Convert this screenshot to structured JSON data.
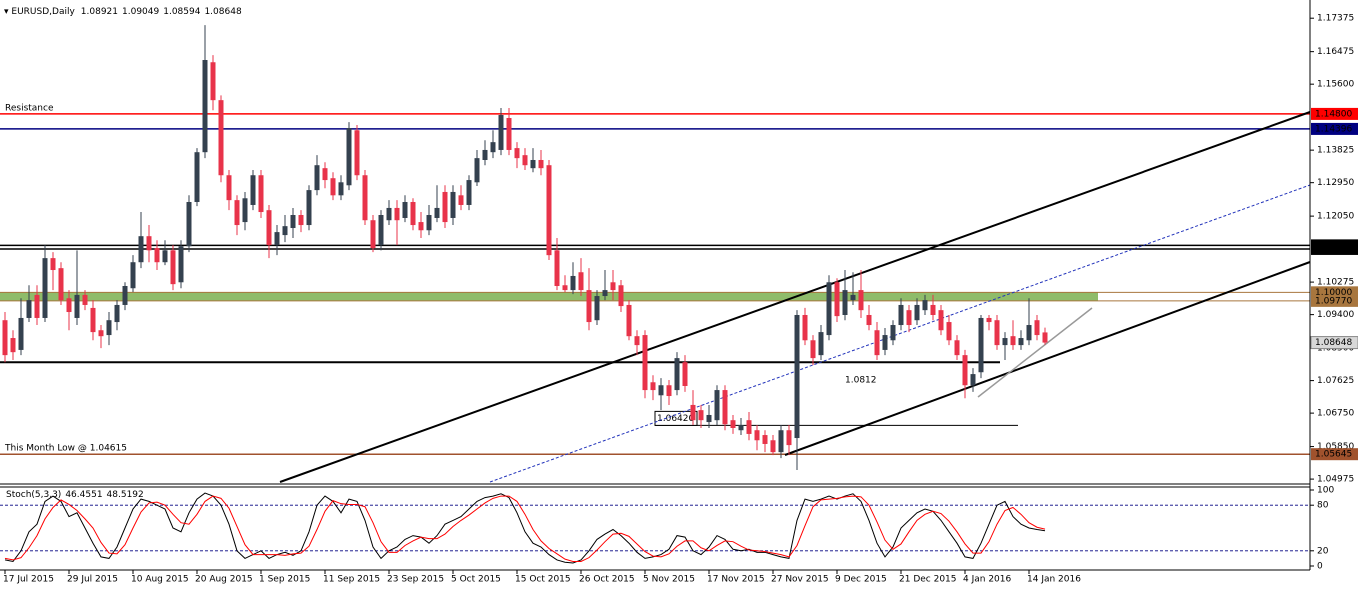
{
  "chart_data": {
    "type": "candlestick",
    "title": "EURUSD,Daily",
    "categories": [
      "17 Jul 2015",
      null,
      null,
      null,
      null,
      null,
      null,
      null,
      "29 Jul 2015",
      null,
      null,
      null,
      null,
      null,
      null,
      null,
      "10 Aug 2015",
      null,
      null,
      null,
      null,
      null,
      null,
      null,
      "20 Aug 2015",
      null,
      null,
      null,
      null,
      null,
      null,
      null,
      "1 Sep 2015",
      null,
      null,
      null,
      null,
      null,
      null,
      null,
      "11 Sep 2015",
      null,
      null,
      null,
      null,
      null,
      null,
      null,
      "23 Sep 2015",
      null,
      null,
      null,
      null,
      null,
      null,
      null,
      "5 Oct 2015",
      null,
      null,
      null,
      null,
      null,
      null,
      null,
      "15 Oct 2015",
      null,
      null,
      null,
      null,
      null,
      null,
      null,
      "26 Oct 2015",
      null,
      null,
      null,
      null,
      null,
      null,
      null,
      "5 Nov 2015",
      null,
      null,
      null,
      null,
      null,
      null,
      null,
      "17 Nov 2015",
      null,
      null,
      null,
      null,
      null,
      null,
      null,
      "27 Nov 2015",
      null,
      null,
      null,
      null,
      null,
      null,
      null,
      "9 Dec 2015",
      null,
      null,
      null,
      null,
      null,
      null,
      null,
      "21 Dec 2015",
      null,
      null,
      null,
      null,
      null,
      null,
      null,
      "4 Jan 2016",
      null,
      null,
      null,
      null,
      null,
      null,
      null,
      "14 Jan 2016",
      null,
      null
    ],
    "candles": [
      [
        1.0925,
        1.0947,
        1.0812,
        1.0831
      ],
      [
        1.0877,
        1.0898,
        1.0818,
        1.0839
      ],
      [
        1.0845,
        1.0984,
        1.0831,
        1.0931
      ],
      [
        1.0931,
        1.1019,
        1.092,
        1.0979
      ],
      [
        1.0993,
        1.1019,
        1.0912,
        1.0931
      ],
      [
        1.0931,
        1.1127,
        1.092,
        1.1092
      ],
      [
        1.1092,
        1.1108,
        1.1006,
        1.106
      ],
      [
        1.1065,
        1.1081,
        1.0966,
        1.0979
      ],
      [
        1.0984,
        1.1006,
        1.0898,
        1.0947
      ],
      [
        1.0931,
        1.1113,
        1.0912,
        1.0993
      ],
      [
        1.0993,
        1.1006,
        1.0952,
        1.0966
      ],
      [
        1.0958,
        1.0979,
        1.0871,
        1.0893
      ],
      [
        1.0898,
        1.0912,
        1.085,
        1.0882
      ],
      [
        1.0885,
        1.0947,
        1.0858,
        1.0925
      ],
      [
        1.092,
        1.0979,
        1.0898,
        1.0966
      ],
      [
        1.0966,
        1.1027,
        1.0952,
        1.1017
      ],
      [
        1.1011,
        1.11,
        1.1001,
        1.1081
      ],
      [
        1.1081,
        1.1216,
        1.1065,
        1.1151
      ],
      [
        1.1151,
        1.1181,
        1.1081,
        1.1113
      ],
      [
        1.1119,
        1.114,
        1.106,
        1.1081
      ],
      [
        1.1081,
        1.114,
        1.1073,
        1.1113
      ],
      [
        1.1113,
        1.1127,
        1.1006,
        1.1022
      ],
      [
        1.1027,
        1.114,
        1.1011,
        1.1124
      ],
      [
        1.1124,
        1.1261,
        1.1108,
        1.1243
      ],
      [
        1.1243,
        1.1388,
        1.1232,
        1.1377
      ],
      [
        1.1377,
        1.1719,
        1.1361,
        1.1625
      ],
      [
        1.1619,
        1.1638,
        1.149,
        1.1517
      ],
      [
        1.1517,
        1.153,
        1.1296,
        1.1315
      ],
      [
        1.1315,
        1.1329,
        1.1221,
        1.1248
      ],
      [
        1.1248,
        1.1261,
        1.1154,
        1.1181
      ],
      [
        1.1189,
        1.127,
        1.1167,
        1.1253
      ],
      [
        1.1235,
        1.1329,
        1.1221,
        1.1315
      ],
      [
        1.1315,
        1.1329,
        1.12,
        1.1216
      ],
      [
        1.1221,
        1.1235,
        1.1092,
        1.1127
      ],
      [
        1.1127,
        1.1181,
        1.11,
        1.1162
      ],
      [
        1.1154,
        1.1208,
        1.1135,
        1.1178
      ],
      [
        1.1173,
        1.1227,
        1.1146,
        1.1208
      ],
      [
        1.1208,
        1.1221,
        1.1162,
        1.1181
      ],
      [
        1.1181,
        1.1288,
        1.1167,
        1.1275
      ],
      [
        1.1275,
        1.1369,
        1.1261,
        1.1342
      ],
      [
        1.1334,
        1.135,
        1.128,
        1.1302
      ],
      [
        1.1307,
        1.1323,
        1.1248,
        1.1261
      ],
      [
        1.1261,
        1.1315,
        1.1248,
        1.1296
      ],
      [
        1.1288,
        1.1458,
        1.1275,
        1.1442
      ],
      [
        1.1436,
        1.145,
        1.1302,
        1.1315
      ],
      [
        1.1315,
        1.1329,
        1.1181,
        1.1194
      ],
      [
        1.1194,
        1.1208,
        1.1108,
        1.1119
      ],
      [
        1.1127,
        1.1221,
        1.1113,
        1.1208
      ],
      [
        1.1194,
        1.1248,
        1.1181,
        1.1227
      ],
      [
        1.1227,
        1.1248,
        1.1127,
        1.1194
      ],
      [
        1.12,
        1.1261,
        1.1189,
        1.1243
      ],
      [
        1.1243,
        1.1253,
        1.1167,
        1.1181
      ],
      [
        1.1189,
        1.1216,
        1.1146,
        1.1167
      ],
      [
        1.1167,
        1.1235,
        1.1154,
        1.1208
      ],
      [
        1.12,
        1.1288,
        1.1189,
        1.1227
      ],
      [
        1.127,
        1.1288,
        1.1173,
        1.1189
      ],
      [
        1.12,
        1.1288,
        1.1181,
        1.127
      ],
      [
        1.1261,
        1.1288,
        1.1221,
        1.1235
      ],
      [
        1.1235,
        1.1315,
        1.1221,
        1.1302
      ],
      [
        1.1296,
        1.1383,
        1.1286,
        1.1361
      ],
      [
        1.1356,
        1.1409,
        1.1342,
        1.1383
      ],
      [
        1.1377,
        1.1436,
        1.1361,
        1.1404
      ],
      [
        1.1383,
        1.1496,
        1.1369,
        1.1477
      ],
      [
        1.1469,
        1.1496,
        1.1369,
        1.1383
      ],
      [
        1.1388,
        1.1404,
        1.1334,
        1.1361
      ],
      [
        1.1369,
        1.1388,
        1.1329,
        1.1342
      ],
      [
        1.1334,
        1.1388,
        1.1323,
        1.1356
      ],
      [
        1.1356,
        1.1383,
        1.1315,
        1.1334
      ],
      [
        1.1342,
        1.1356,
        1.1087,
        1.11
      ],
      [
        1.1113,
        1.1146,
        1.1006,
        1.1017
      ],
      [
        1.1019,
        1.1046,
        1.1001,
        1.1006
      ],
      [
        1.1006,
        1.1081,
        1.0995,
        1.1044
      ],
      [
        1.1054,
        1.1092,
        1.099,
        1.1006
      ],
      [
        1.1006,
        1.1065,
        1.0898,
        1.092
      ],
      [
        1.0925,
        1.1006,
        1.0912,
        1.099
      ],
      [
        1.099,
        1.106,
        1.0979,
        1.1006
      ],
      [
        1.1027,
        1.106,
        1.0979,
        1.1006
      ],
      [
        1.1019,
        1.1033,
        1.0947,
        1.0963
      ],
      [
        1.0966,
        1.0979,
        1.0871,
        1.0882
      ],
      [
        1.0882,
        1.0898,
        1.0831,
        1.0858
      ],
      [
        1.0885,
        1.0898,
        1.0715,
        1.0737
      ],
      [
        1.0758,
        1.0777,
        1.071,
        1.0737
      ],
      [
        1.0723,
        1.0769,
        1.0683,
        1.075
      ],
      [
        1.075,
        1.0764,
        1.0697,
        1.0721
      ],
      [
        1.0737,
        1.0839,
        1.0723,
        1.0823
      ],
      [
        1.0812,
        1.0831,
        1.0732,
        1.0748
      ],
      [
        1.0697,
        1.0737,
        1.0643,
        1.0656
      ],
      [
        1.0683,
        1.0697,
        1.0635,
        1.0656
      ],
      [
        1.0651,
        1.0697,
        1.0635,
        1.067
      ],
      [
        1.0656,
        1.075,
        1.0643,
        1.0737
      ],
      [
        1.0737,
        1.075,
        1.0629,
        1.0645
      ],
      [
        1.0656,
        1.067,
        1.0619,
        1.0635
      ],
      [
        1.0629,
        1.0662,
        1.0616,
        1.0643
      ],
      [
        1.0656,
        1.0678,
        1.0602,
        1.0619
      ],
      [
        1.0629,
        1.0643,
        1.0575,
        1.0602
      ],
      [
        1.0616,
        1.0629,
        1.057,
        1.0592
      ],
      [
        1.0602,
        1.0616,
        1.0562,
        1.057
      ],
      [
        1.057,
        1.0643,
        1.0554,
        1.0629
      ],
      [
        1.0629,
        1.0643,
        1.0562,
        1.0589
      ],
      [
        1.0608,
        1.0952,
        1.0522,
        1.0939
      ],
      [
        1.0939,
        1.0958,
        1.0858,
        1.0871
      ],
      [
        1.0871,
        1.0885,
        1.0804,
        1.0823
      ],
      [
        1.0831,
        1.0912,
        1.0818,
        1.0893
      ],
      [
        1.0885,
        1.1046,
        1.0871,
        1.1027
      ],
      [
        1.1027,
        1.1038,
        1.092,
        1.0936
      ],
      [
        1.0939,
        1.106,
        1.0925,
        1.1006
      ],
      [
        1.0979,
        1.1054,
        1.0966,
        1.0993
      ],
      [
        1.1006,
        1.106,
        1.0931,
        1.0952
      ],
      [
        1.0939,
        1.0966,
        1.0898,
        1.0912
      ],
      [
        1.0898,
        1.092,
        1.0818,
        1.0831
      ],
      [
        1.0845,
        1.0904,
        1.0831,
        1.0885
      ],
      [
        1.0871,
        1.0925,
        1.0858,
        1.0912
      ],
      [
        1.0912,
        1.0984,
        1.0898,
        1.0966
      ],
      [
        1.0952,
        1.0966,
        1.0893,
        1.0912
      ],
      [
        1.0925,
        1.0984,
        1.0912,
        1.0966
      ],
      [
        1.0952,
        1.0993,
        1.0939,
        1.0979
      ],
      [
        1.0966,
        1.0993,
        1.0925,
        1.0939
      ],
      [
        1.0952,
        1.0966,
        1.0885,
        1.0898
      ],
      [
        1.092,
        1.0939,
        1.0858,
        1.0871
      ],
      [
        1.0871,
        1.0885,
        1.0818,
        1.0831
      ],
      [
        1.0831,
        1.0845,
        1.0715,
        1.075
      ],
      [
        1.075,
        1.0796,
        1.0732,
        1.078
      ],
      [
        1.0785,
        1.0939,
        1.0769,
        1.0931
      ],
      [
        1.0931,
        1.0939,
        1.0898,
        1.092
      ],
      [
        1.0925,
        1.0939,
        1.0845,
        1.0858
      ],
      [
        1.0858,
        1.0893,
        1.0818,
        1.0877
      ],
      [
        1.0882,
        1.0925,
        1.0845,
        1.0858
      ],
      [
        1.0858,
        1.0898,
        1.0845,
        1.0877
      ],
      [
        1.0871,
        1.0984,
        1.0858,
        1.0912
      ],
      [
        1.0925,
        1.0939,
        1.0871,
        1.0885
      ],
      [
        1.08921,
        1.09049,
        1.08594,
        1.08648
      ]
    ],
    "up_color": "#34414f",
    "down_color": "#e8334a",
    "ylim": [
      1.0487,
      1.1773
    ],
    "yticks": [
      1.17375,
      1.16475,
      {
        "value": 1.156,
        "label": "1.15600"
      },
      1.13825,
      {
        "value": 1.1295,
        "label": "1.12950"
      },
      {
        "value": 1.1205,
        "label": "1.12050"
      },
      1.10275,
      {
        "value": 1.094,
        "label": "1.09400"
      },
      {
        "value": 1.085,
        "label": "1.08500"
      },
      1.07625,
      {
        "value": 1.0675,
        "label": "1.06750"
      },
      {
        "value": 1.0585,
        "label": "1.05850"
      },
      1.04975
    ],
    "levels": [
      {
        "name": "Resistance",
        "value": 1.148,
        "label": "1.14800",
        "color": "#ff0000",
        "text_color": "#ffffff"
      },
      {
        "value": 1.14396,
        "color": "#000080",
        "text_color": "#ffffff"
      },
      {
        "value": 1.11263,
        "color": "#000000",
        "text_color": "#ffffff"
      },
      {
        "value": 1.11167,
        "color": "#000000",
        "text_color": "#ffffff"
      },
      {
        "value": 1.1,
        "label": "1.10000",
        "color": "#a8763e",
        "text_color": "#ffffff",
        "zone": true
      },
      {
        "value": 1.0977,
        "label": "1.09770",
        "color": "#a8763e",
        "text_color": "#ffffff",
        "zone": true
      },
      {
        "name": "This Month Low @ 1.04615",
        "value": 1.05645,
        "color": "#a0522d",
        "text_color": "#ffffff"
      }
    ],
    "zone_color": "#8fbc6a",
    "annotations": [
      {
        "value": 1.0812
      },
      {
        "value": 1.0642,
        "label": "1.06420"
      }
    ],
    "stoch": {
      "title": "Stoch(5,3,3)",
      "ylim": [
        0,
        100
      ],
      "yticks": [
        100,
        80,
        20,
        0
      ],
      "series": [
        {
          "color": "#000000",
          "values": [
            8,
            6,
            20,
            45,
            55,
            85,
            92,
            85,
            65,
            70,
            50,
            30,
            12,
            10,
            25,
            50,
            75,
            88,
            85,
            80,
            75,
            50,
            45,
            70,
            88,
            96,
            92,
            80,
            55,
            20,
            10,
            15,
            20,
            10,
            15,
            18,
            14,
            20,
            45,
            80,
            92,
            85,
            70,
            88,
            85,
            60,
            25,
            10,
            20,
            25,
            35,
            40,
            38,
            30,
            40,
            55,
            60,
            65,
            75,
            85,
            90,
            92,
            95,
            90,
            70,
            45,
            30,
            25,
            15,
            8,
            5,
            4,
            8,
            20,
            35,
            42,
            48,
            40,
            30,
            18,
            10,
            12,
            15,
            22,
            40,
            38,
            20,
            15,
            25,
            40,
            35,
            22,
            20,
            22,
            18,
            18,
            15,
            12,
            10,
            60,
            88,
            85,
            88,
            92,
            88,
            92,
            95,
            85,
            60,
            30,
            12,
            25,
            50,
            60,
            70,
            75,
            72,
            60,
            45,
            30,
            12,
            10,
            30,
            55,
            80,
            85,
            65,
            55,
            50,
            48,
            46.4551
          ]
        },
        {
          "color": "#ff0000",
          "values": [
            10,
            8,
            11,
            24,
            40,
            62,
            77,
            87,
            81,
            73,
            62,
            50,
            31,
            17,
            16,
            28,
            50,
            71,
            83,
            84,
            80,
            68,
            57,
            55,
            68,
            85,
            92,
            89,
            76,
            52,
            28,
            15,
            15,
            15,
            15,
            14,
            16,
            17,
            26,
            48,
            72,
            86,
            82,
            81,
            81,
            78,
            57,
            32,
            18,
            18,
            27,
            33,
            38,
            36,
            36,
            42,
            52,
            60,
            67,
            75,
            83,
            89,
            92,
            92,
            85,
            68,
            48,
            33,
            23,
            16,
            9,
            6,
            6,
            11,
            21,
            32,
            42,
            43,
            39,
            29,
            19,
            13,
            12,
            16,
            26,
            33,
            33,
            24,
            20,
            27,
            33,
            32,
            26,
            21,
            20,
            19,
            17,
            15,
            12,
            27,
            53,
            78,
            87,
            88,
            89,
            91,
            92,
            91,
            80,
            58,
            34,
            22,
            29,
            45,
            60,
            68,
            72,
            69,
            59,
            45,
            29,
            17,
            17,
            32,
            55,
            73,
            77,
            68,
            57,
            51,
            48.5192
          ]
        }
      ]
    }
  }
}
